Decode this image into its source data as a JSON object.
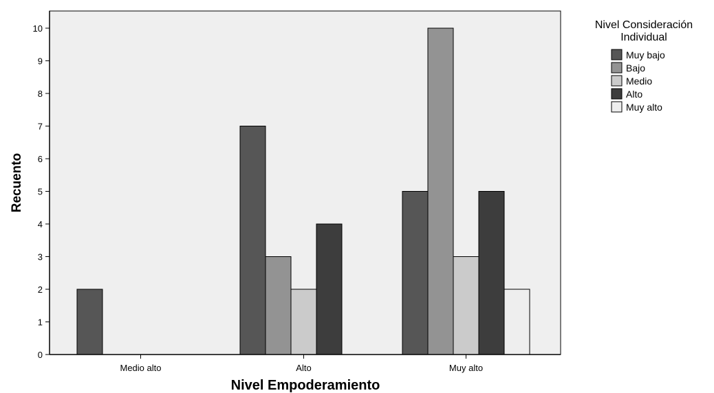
{
  "chart_data": {
    "type": "bar",
    "title": "",
    "xlabel": "Nivel Empoderamiento",
    "ylabel": "Recuento",
    "categories": [
      "Medio alto",
      "Alto",
      "Muy alto"
    ],
    "ylim": [
      0,
      10.5
    ],
    "yticks": [
      0,
      1,
      2,
      3,
      4,
      5,
      6,
      7,
      8,
      9,
      10
    ],
    "grid": false,
    "legend": {
      "title_line1": "Nivel Consideración",
      "title_line2": "Individual",
      "placement": "top-right, outside plot"
    },
    "series": [
      {
        "name": "Muy bajo",
        "color": "#565656",
        "values": [
          2,
          7,
          5
        ]
      },
      {
        "name": "Bajo",
        "color": "#939393",
        "values": [
          null,
          3,
          10
        ]
      },
      {
        "name": "Medio",
        "color": "#cbcbcb",
        "values": [
          null,
          2,
          3
        ]
      },
      {
        "name": "Alto",
        "color": "#3d3d3d",
        "values": [
          null,
          4,
          5
        ]
      },
      {
        "name": "Muy alto",
        "color": "#eeeeee",
        "values": [
          null,
          null,
          2
        ]
      }
    ],
    "plot_background": "#efefef"
  }
}
